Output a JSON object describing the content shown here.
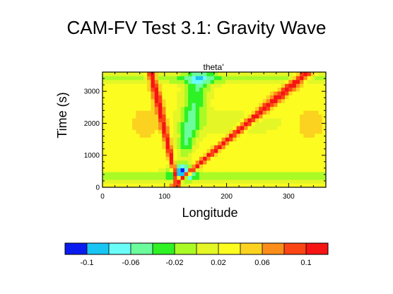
{
  "chart_data": {
    "type": "heatmap",
    "title": "CAM-FV Test 3.1: Gravity Wave",
    "subtitle": "theta'",
    "xlabel": "Longitude",
    "ylabel": "Time (s)",
    "xlim": [
      0,
      360
    ],
    "ylim": [
      0,
      3600
    ],
    "x_ticks": [
      0,
      100,
      200,
      300
    ],
    "y_ticks": [
      0,
      1000,
      2000,
      3000
    ],
    "x_tick_labels": [
      "0",
      "100",
      "200",
      "300"
    ],
    "y_tick_labels": [
      "0",
      "1000",
      "2000",
      "3000"
    ],
    "colorbar": {
      "levels": [
        -0.12,
        -0.1,
        -0.08,
        -0.06,
        -0.04,
        -0.02,
        0,
        0.02,
        0.04,
        0.06,
        0.08,
        0.1,
        0.12
      ],
      "colors": [
        "#0a1bf0",
        "#19c5f2",
        "#6afcf7",
        "#6dfc9c",
        "#2ef224",
        "#aafa26",
        "#e4f626",
        "#fcfc20",
        "#fbd21f",
        "#fb8d1a",
        "#fb4515",
        "#f61414"
      ],
      "tick_values": [
        -0.1,
        -0.06,
        -0.02,
        0.02,
        0.06,
        0.1
      ],
      "tick_labels": [
        "-0.1",
        "-0.06",
        "-0.02",
        "0.02",
        "0.06",
        "0.1"
      ]
    },
    "field": {
      "background": 0.03,
      "features": [
        {
          "kind": "wave_front",
          "x0": 120,
          "t0": 150,
          "speed_deg_per_s": 0.061,
          "direction": "east",
          "amplitude": 0.11
        },
        {
          "kind": "wave_front",
          "x0": 120,
          "t0": 150,
          "speed_deg_per_s": 0.012,
          "direction": "west",
          "amplitude": 0.11
        },
        {
          "kind": "bubble",
          "x": 128,
          "t": 480,
          "value": -0.11
        },
        {
          "kind": "band",
          "t": 350,
          "value": -0.015
        },
        {
          "kind": "band",
          "t": 3400,
          "value": -0.015
        },
        {
          "kind": "wedge",
          "x0": 130,
          "t0": 800,
          "t1": 3600,
          "value": -0.04
        },
        {
          "kind": "ridge",
          "x": 70,
          "t": 2000,
          "value": 0.06
        },
        {
          "kind": "ridge",
          "x": 335,
          "t": 2000,
          "value": 0.06
        }
      ]
    },
    "grid": false,
    "legend": "bottom"
  }
}
